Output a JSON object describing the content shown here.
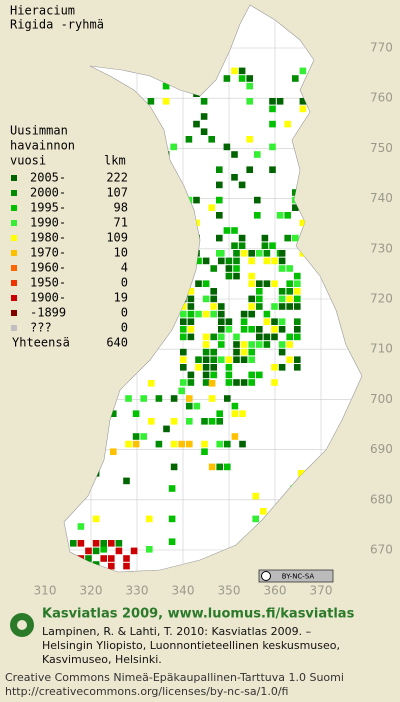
{
  "title": [
    "Hieracium",
    "Rigida -ryhmä"
  ],
  "legend": {
    "heading": [
      "Uusimman",
      "havainnon"
    ],
    "col_year": "vuosi",
    "col_count": "lkm",
    "rows": [
      {
        "label": "2005-",
        "count": 222,
        "color": "#006400"
      },
      {
        "label": "2000-",
        "count": 107,
        "color": "#008c00"
      },
      {
        "label": "1995-",
        "count": 98,
        "color": "#00c000"
      },
      {
        "label": "1990-",
        "count": 71,
        "color": "#33ee33"
      },
      {
        "label": "1980-",
        "count": 109,
        "color": "#ffff00"
      },
      {
        "label": "1970-",
        "count": 10,
        "color": "#ffc000"
      },
      {
        "label": "1960-",
        "count": 4,
        "color": "#ff6600"
      },
      {
        "label": "1950-",
        "count": 0,
        "color": "#ee3300"
      },
      {
        "label": "1900-",
        "count": 19,
        "color": "#cc0000"
      },
      {
        "label": "-1899",
        "count": 0,
        "color": "#800000"
      },
      {
        "label": "???",
        "count": 0,
        "color": "#c0c0c0"
      }
    ],
    "total_label": "Yhteensä",
    "total": 640
  },
  "grid": {
    "x_labels": [
      310,
      320,
      330,
      340,
      350,
      360,
      370
    ],
    "y_labels": [
      770,
      760,
      750,
      740,
      730,
      720,
      710,
      700,
      690,
      680,
      670
    ]
  },
  "badge": "BY-NC-SA",
  "logo_text": "Kasviatlas 2009, www.luomus.fi/kasviatlas",
  "citation": [
    "Lampinen, R. & Lahti, T. 2010: Kasviatlas 2009. –",
    "Helsingin Yliopisto, Luonnontieteellinen keskusmuseo,",
    "Kasvimuseo, Helsinki."
  ],
  "license": [
    "Creative Commons Nimeä-Epäkaupallinen-Tarttuva 1.0 Suomi",
    "http://creativecommons.org/licenses/by-nc-sa/1.0/fi"
  ]
}
